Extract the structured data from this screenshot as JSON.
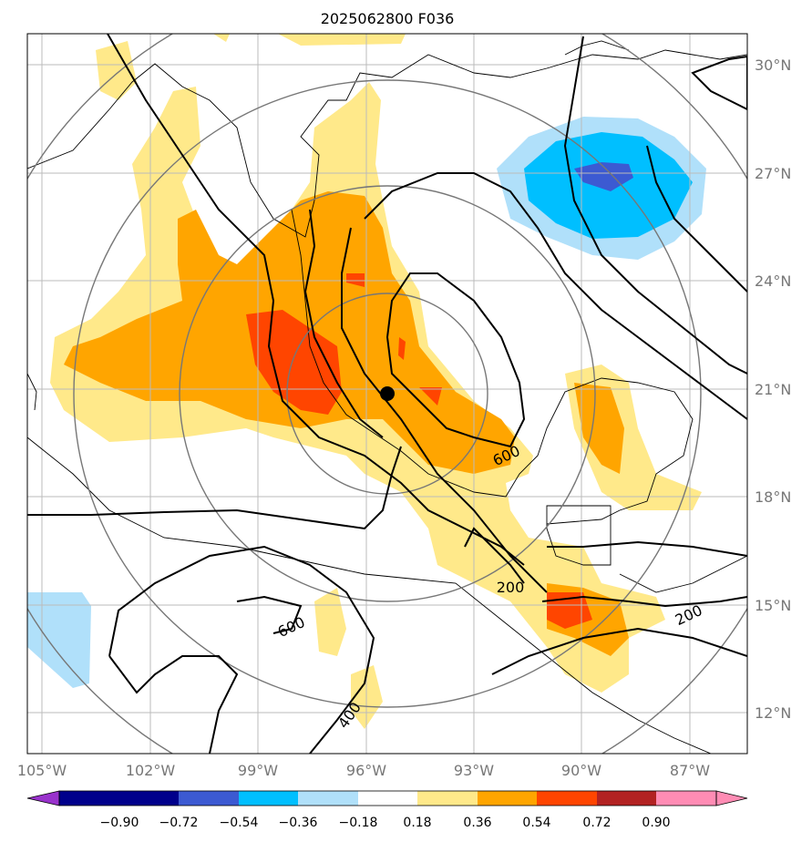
{
  "title": "2025062800 F036",
  "map": {
    "lon_range": [
      -105.6,
      -85.6
    ],
    "lat_range": [
      10.9,
      30.8
    ],
    "lon_ticks": [
      "105°W",
      "102°W",
      "99°W",
      "96°W",
      "93°W",
      "90°W",
      "87°W"
    ],
    "lat_ticks": [
      "30°N",
      "27°N",
      "24°N",
      "21°N",
      "18°N",
      "15°N",
      "12°N"
    ],
    "gridlines": true,
    "center_marker": {
      "lon": -95.3,
      "lat": 20.9
    },
    "range_rings": "concentric circles around center",
    "contour_labels": [
      "600",
      "200",
      "200",
      "600",
      "400"
    ]
  },
  "colorbar": {
    "ticks": [
      "−0.90",
      "−0.72",
      "−0.54",
      "−0.36",
      "−0.18",
      "0.18",
      "0.36",
      "0.54",
      "0.72",
      "0.90"
    ],
    "colors": [
      "#9932cc",
      "#00008b",
      "#3c5ad2",
      "#00bfff",
      "#b0e0fa",
      "#ffffff",
      "#ffe98a",
      "#ffa500",
      "#ff4500",
      "#b22222",
      "#ff8cb4"
    ],
    "extend": "both"
  }
}
